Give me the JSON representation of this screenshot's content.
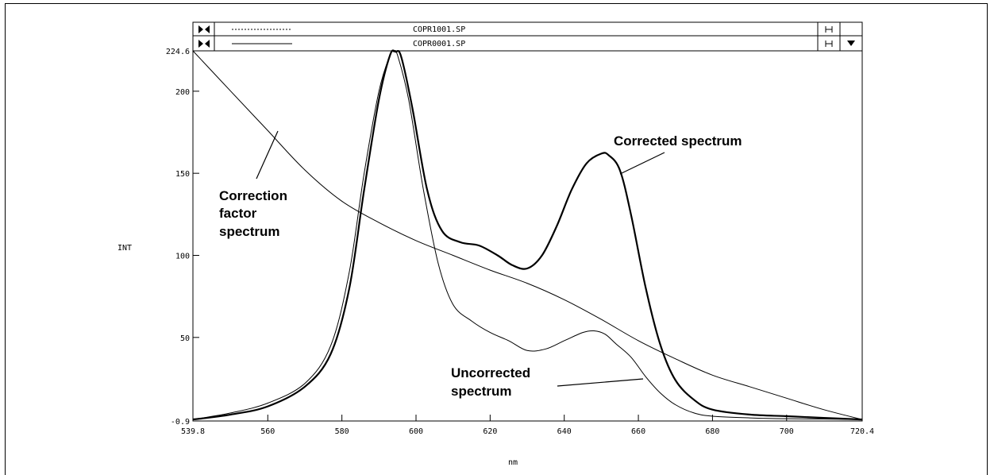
{
  "legend_rows": [
    {
      "file": "COPR1001.SP",
      "line_style": "dotted"
    },
    {
      "file": "COPR0001.SP",
      "line_style": "solid"
    }
  ],
  "icons": {
    "left": "bowtie-icon",
    "range": "range-icon",
    "dropdown": "triangle-down-icon"
  },
  "chart_data": {
    "type": "line",
    "xlabel": "nm",
    "ylabel": "INT",
    "xlim": [
      539.8,
      720.4
    ],
    "ylim": [
      -0.9,
      224.6
    ],
    "x_ticks": [
      "539.8",
      "560",
      "580",
      "600",
      "620",
      "640",
      "660",
      "680",
      "700",
      "720.4"
    ],
    "x_tick_values": [
      539.8,
      560,
      580,
      600,
      620,
      640,
      660,
      680,
      700,
      720.4
    ],
    "y_ticks": [
      "-0.9",
      "50",
      "100",
      "150",
      "200",
      "224.6"
    ],
    "y_tick_values": [
      -0.9,
      50,
      100,
      150,
      200,
      224.6
    ],
    "grid": false,
    "series": [
      {
        "name": "Corrected spectrum",
        "weight": "bold",
        "x": [
          539.8,
          550,
          560,
          570,
          577,
          582,
          586,
          590,
          593,
          594.5,
          596,
          599,
          603,
          607,
          612,
          617,
          622,
          626,
          630,
          634,
          638,
          642,
          646,
          650,
          652,
          655,
          658,
          662,
          666,
          670,
          675,
          680,
          690,
          700,
          710,
          720.4
        ],
        "y": [
          0,
          3,
          8,
          20,
          40,
          80,
          140,
          195,
          222,
          224,
          221,
          190,
          140,
          115,
          108,
          106,
          100,
          94,
          92,
          100,
          118,
          140,
          156,
          162,
          161,
          152,
          125,
          80,
          45,
          24,
          12,
          6,
          3,
          2,
          1,
          0
        ]
      },
      {
        "name": "Uncorrected spectrum",
        "weight": "thin",
        "x": [
          539.8,
          550,
          560,
          570,
          577,
          582,
          586,
          590,
          593,
          594,
          595,
          598,
          602,
          606,
          610,
          615,
          620,
          625,
          630,
          635,
          640,
          645,
          648,
          651,
          654,
          658,
          662,
          666,
          670,
          675,
          680,
          690,
          700,
          710,
          720.4
        ],
        "y": [
          0,
          4,
          10,
          22,
          45,
          90,
          150,
          200,
          222,
          224,
          222,
          195,
          140,
          95,
          70,
          60,
          53,
          48,
          42,
          43,
          48,
          53,
          54,
          52,
          46,
          38,
          26,
          16,
          9,
          4,
          2,
          1,
          0.5,
          0.3,
          0
        ]
      },
      {
        "name": "Correction factor spectrum",
        "weight": "thin",
        "x": [
          539.8,
          550,
          560,
          570,
          580,
          590,
          600,
          610,
          620,
          630,
          640,
          650,
          660,
          670,
          680,
          690,
          700,
          710,
          720.4
        ],
        "y": [
          224.6,
          200,
          176,
          152,
          133,
          120,
          109,
          100,
          91,
          83,
          73,
          61,
          48,
          37,
          27,
          20,
          13,
          6,
          0
        ]
      }
    ],
    "annotations": [
      {
        "text": "Corrected spectrum",
        "lines": [
          "Corrected spectrum"
        ]
      },
      {
        "text": "Correction factor spectrum",
        "lines": [
          "Correction",
          "factor",
          "spectrum"
        ]
      },
      {
        "text": "Uncorrected spectrum",
        "lines": [
          "Uncorrected",
          "spectrum"
        ]
      }
    ]
  }
}
